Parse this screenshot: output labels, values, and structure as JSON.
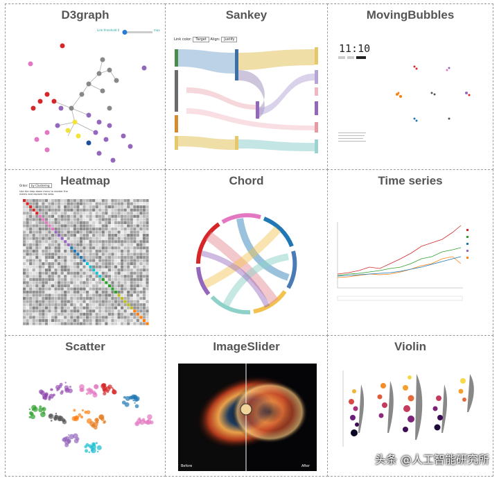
{
  "panels": [
    {
      "title": "D3graph"
    },
    {
      "title": "Sankey"
    },
    {
      "title": "MovingBubbles"
    },
    {
      "title": "Heatmap"
    },
    {
      "title": "Chord"
    },
    {
      "title": "Time series"
    },
    {
      "title": "Scatter"
    },
    {
      "title": "ImageSlider"
    },
    {
      "title": "Violin"
    }
  ],
  "d3graph": {
    "slider_label": "Link threshold 0",
    "slider_max": "max"
  },
  "sankey": {
    "link_color_label": "Link color:",
    "link_color_value": "Target",
    "align_label": "Align:",
    "align_value": "Justify"
  },
  "moving_bubbles": {
    "clock": "11:10"
  },
  "heatmap": {
    "order_label": "Order:",
    "order_value": "by Clustering",
    "hint": "Use the drop-down menu to reorder the matrix and explore the data."
  },
  "image_slider": {
    "before": "Before",
    "after": "After"
  },
  "watermark": "头条 @人工智能研究所",
  "colors": {
    "border": "#9a9a9a",
    "title": "#555555"
  }
}
